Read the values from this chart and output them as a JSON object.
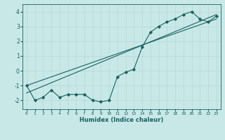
{
  "xlabel": "Humidex (Indice chaleur)",
  "ylabel": "",
  "bg_color": "#c8e8e8",
  "line_color": "#1a6060",
  "grid_color": "#b8d8d8",
  "xlim": [
    -0.5,
    23.5
  ],
  "ylim": [
    -2.6,
    4.5
  ],
  "xticks": [
    0,
    1,
    2,
    3,
    4,
    5,
    6,
    7,
    8,
    9,
    10,
    11,
    12,
    13,
    14,
    15,
    16,
    17,
    18,
    19,
    20,
    21,
    22,
    23
  ],
  "yticks": [
    -2,
    -1,
    0,
    1,
    2,
    3,
    4
  ],
  "line1_x": [
    0,
    1,
    2,
    3,
    4,
    5,
    6,
    7,
    8,
    9,
    10,
    11,
    12,
    13,
    14,
    15,
    16,
    17,
    18,
    19,
    20,
    21,
    22,
    23
  ],
  "line1_y": [
    -1.0,
    -2.0,
    -1.8,
    -1.3,
    -1.8,
    -1.6,
    -1.6,
    -1.6,
    -2.0,
    -2.1,
    -2.0,
    -0.4,
    -0.1,
    0.1,
    1.6,
    2.6,
    3.0,
    3.3,
    3.5,
    3.8,
    4.0,
    3.5,
    3.3,
    3.7
  ],
  "line2_x": [
    0,
    23
  ],
  "line2_y": [
    -1.5,
    3.8
  ],
  "line3_x": [
    0,
    23
  ],
  "line3_y": [
    -1.0,
    3.5
  ]
}
